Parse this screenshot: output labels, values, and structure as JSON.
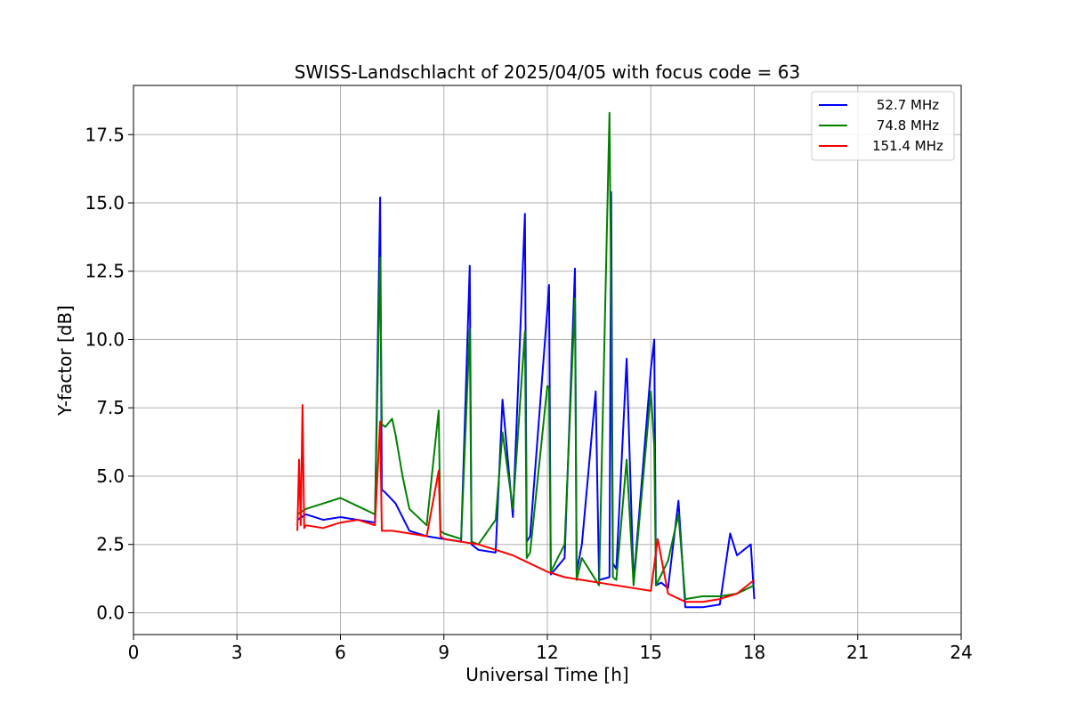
{
  "chart_data": {
    "type": "line",
    "title": "SWISS-Landschlacht of 2025/04/05 with focus code = 63",
    "xlabel": "Universal Time [h]",
    "ylabel": "Y-factor [dB]",
    "xlim": [
      0,
      24
    ],
    "ylim": [
      -0.8,
      19.3
    ],
    "xticks": [
      "0",
      "3",
      "6",
      "9",
      "12",
      "15",
      "18",
      "21",
      "24"
    ],
    "yticks": [
      "0.0",
      "2.5",
      "5.0",
      "7.5",
      "10.0",
      "12.5",
      "15.0",
      "17.5"
    ],
    "grid": true,
    "legend_position": "top-right",
    "series": [
      {
        "name": "52.7 MHz",
        "color": "#0000ff",
        "x": [
          4.75,
          5.0,
          5.5,
          6.0,
          6.5,
          7.0,
          7.15,
          7.2,
          7.3,
          7.6,
          8.0,
          8.5,
          9.0,
          9.5,
          9.75,
          9.8,
          10.0,
          10.5,
          10.7,
          11.0,
          11.35,
          11.4,
          11.5,
          12.0,
          12.05,
          12.1,
          12.5,
          12.8,
          12.85,
          13.0,
          13.4,
          13.5,
          13.8,
          13.85,
          13.9,
          14.0,
          14.3,
          14.5,
          15.0,
          15.1,
          15.15,
          15.3,
          15.5,
          15.8,
          16.0,
          16.5,
          17.0,
          17.3,
          17.5,
          17.9,
          18.0
        ],
        "y": [
          3.4,
          3.6,
          3.4,
          3.5,
          3.4,
          3.3,
          15.2,
          4.5,
          4.4,
          4.0,
          3.0,
          2.8,
          2.7,
          2.6,
          12.7,
          2.5,
          2.3,
          2.2,
          7.8,
          3.5,
          14.6,
          2.6,
          2.8,
          11.1,
          12.0,
          1.4,
          2.0,
          12.6,
          1.5,
          2.5,
          8.1,
          1.2,
          1.3,
          15.4,
          1.8,
          1.6,
          9.3,
          1.1,
          8.9,
          10.0,
          1.0,
          1.1,
          0.9,
          4.1,
          0.2,
          0.2,
          0.3,
          2.9,
          2.1,
          2.5,
          0.5
        ]
      },
      {
        "name": "74.8 MHz",
        "color": "#008000",
        "x": [
          4.75,
          5.0,
          5.5,
          6.0,
          6.5,
          7.0,
          7.15,
          7.2,
          7.3,
          7.5,
          7.6,
          7.8,
          8.0,
          8.5,
          8.85,
          8.9,
          9.0,
          9.5,
          9.75,
          9.8,
          10.0,
          10.5,
          10.7,
          11.0,
          11.35,
          11.4,
          11.5,
          12.0,
          12.05,
          12.1,
          12.5,
          12.8,
          12.85,
          13.0,
          13.5,
          13.8,
          13.85,
          13.9,
          14.0,
          14.3,
          14.5,
          15.0,
          15.1,
          15.15,
          15.5,
          15.8,
          16.0,
          16.5,
          17.0,
          17.5,
          18.0
        ],
        "y": [
          3.6,
          3.8,
          4.0,
          4.2,
          3.9,
          3.6,
          13.0,
          6.9,
          6.8,
          7.1,
          6.5,
          5.0,
          3.8,
          3.2,
          7.4,
          3.0,
          2.9,
          2.7,
          10.4,
          2.6,
          2.5,
          3.4,
          6.6,
          3.8,
          10.3,
          2.0,
          2.2,
          8.3,
          8.2,
          1.5,
          2.5,
          11.5,
          1.2,
          2.0,
          1.0,
          18.3,
          11.6,
          1.3,
          1.2,
          5.6,
          1.0,
          8.1,
          6.1,
          1.0,
          1.9,
          3.6,
          0.5,
          0.6,
          0.6,
          0.7,
          1.0
        ]
      },
      {
        "name": "151.4 MHz",
        "color": "#ff0000",
        "x": [
          4.75,
          4.8,
          4.85,
          4.9,
          4.95,
          5.0,
          5.5,
          6.0,
          6.5,
          7.0,
          7.15,
          7.2,
          7.5,
          8.0,
          8.5,
          8.85,
          8.9,
          9.0,
          9.5,
          10.0,
          10.5,
          11.0,
          11.5,
          12.0,
          12.5,
          13.0,
          13.5,
          14.0,
          14.5,
          15.0,
          15.2,
          15.5,
          16.0,
          16.5,
          17.0,
          17.5,
          18.0
        ],
        "y": [
          3.0,
          5.6,
          3.2,
          7.6,
          3.1,
          3.2,
          3.1,
          3.3,
          3.4,
          3.2,
          7.0,
          3.0,
          3.0,
          2.9,
          2.8,
          5.2,
          2.8,
          2.7,
          2.6,
          2.5,
          2.3,
          2.1,
          1.8,
          1.5,
          1.3,
          1.2,
          1.1,
          1.0,
          0.9,
          0.8,
          2.7,
          0.7,
          0.4,
          0.4,
          0.5,
          0.7,
          1.2
        ]
      }
    ]
  }
}
